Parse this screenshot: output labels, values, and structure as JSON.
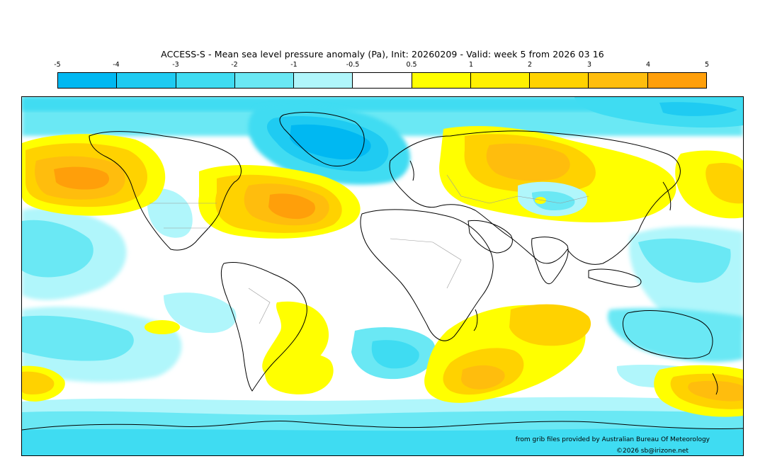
{
  "title": "ACCESS-S - Mean sea level pressure anomaly (Pa), Init: 20260209 - Valid: week 5 from 2026 03 16",
  "legend": {
    "ticks": [
      "-5",
      "-4",
      "-3",
      "-2",
      "-1",
      "-0.5",
      "0.5",
      "1",
      "2",
      "3",
      "4",
      "5"
    ],
    "colors": [
      "#00b8f2",
      "#1fcbf2",
      "#3fdcf2",
      "#6ae8f4",
      "#b0f6fb",
      "#ffffff",
      "#ffff00",
      "#fff000",
      "#ffd200",
      "#ffbd0d",
      "#ff9f0a"
    ]
  },
  "map": {
    "ocean_background": "#ffffff",
    "coastline_color": "#000000",
    "border_color": "#999999"
  },
  "footer": {
    "source": "from grib files provided by Australian Bureau Of Meteorology",
    "copyright": "©2026 sb@irizone.net"
  }
}
